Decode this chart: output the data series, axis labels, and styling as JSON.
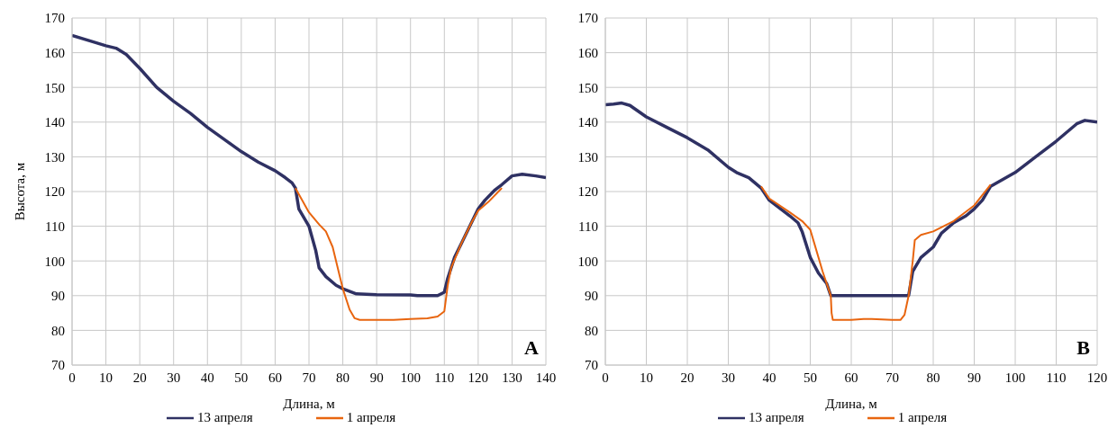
{
  "chart_data": [
    {
      "type": "line",
      "xlabel": "Длина, м",
      "ylabel": "Высота, м",
      "xlim": [
        0,
        140
      ],
      "xticks": [
        0,
        10,
        20,
        30,
        40,
        50,
        60,
        70,
        80,
        90,
        100,
        110,
        120,
        130,
        140
      ],
      "ylim": [
        70,
        170
      ],
      "yticks": [
        70,
        80,
        90,
        100,
        110,
        120,
        130,
        140,
        150,
        160,
        170
      ],
      "grid": true,
      "legend": "bottom",
      "annotations": [
        "A"
      ],
      "series": [
        {
          "name": "13 апреля",
          "color": "#2f3163",
          "x": [
            0,
            5,
            10,
            13,
            16,
            20,
            25,
            30,
            35,
            40,
            45,
            50,
            55,
            60,
            63,
            65,
            66,
            67,
            70,
            72,
            73,
            75,
            78,
            80,
            84,
            90,
            100,
            102,
            108,
            110,
            111,
            113,
            115,
            117,
            119,
            120,
            122,
            125,
            127,
            130,
            133,
            137,
            140
          ],
          "values": [
            165,
            163.5,
            162,
            161.3,
            159.5,
            155.5,
            150,
            146,
            142.5,
            138.5,
            135,
            131.5,
            128.5,
            126,
            124,
            122.5,
            121,
            115,
            110,
            103,
            98,
            95.5,
            93,
            92,
            90.5,
            90.3,
            90.2,
            90,
            90,
            91,
            95,
            101,
            105,
            109,
            113,
            115,
            117.5,
            120.5,
            122,
            124.5,
            125,
            124.5,
            124
          ]
        },
        {
          "name": "1 апреля",
          "color": "#e8650f",
          "x": [
            66,
            70,
            73,
            75,
            77,
            79,
            80,
            82,
            83.5,
            85,
            90,
            95,
            100,
            105,
            108,
            110,
            111,
            112,
            115,
            118,
            120,
            123,
            126,
            127
          ],
          "values": [
            121,
            114,
            110.5,
            108.5,
            104,
            96,
            92,
            86,
            83.5,
            83,
            83,
            83,
            83.3,
            83.5,
            84,
            85.5,
            93,
            98,
            105,
            111,
            114.5,
            117,
            120,
            121
          ]
        }
      ]
    },
    {
      "type": "line",
      "xlabel": "Длина, м",
      "xlim": [
        0,
        120
      ],
      "xticks": [
        0,
        10,
        20,
        30,
        40,
        50,
        60,
        70,
        80,
        90,
        100,
        110,
        120
      ],
      "ylim": [
        70,
        170
      ],
      "yticks": [
        70,
        80,
        90,
        100,
        110,
        120,
        130,
        140,
        150,
        160,
        170
      ],
      "grid": true,
      "legend": "bottom",
      "annotations": [
        "B"
      ],
      "series": [
        {
          "name": "13 апреля",
          "color": "#2f3163",
          "x": [
            0,
            2,
            4,
            6,
            10,
            15,
            20,
            25,
            30,
            32,
            35,
            38,
            40,
            45,
            47,
            48,
            50,
            52,
            54,
            55,
            60,
            70,
            74,
            75,
            77,
            80,
            82,
            85,
            88,
            90,
            92,
            94,
            100,
            105,
            110,
            115,
            117,
            120
          ],
          "values": [
            145,
            145.2,
            145.5,
            144.8,
            141.5,
            138.5,
            135.5,
            132,
            127,
            125.5,
            124,
            121,
            117.5,
            113,
            111,
            108.5,
            101,
            96.5,
            93.5,
            90,
            90,
            90,
            90,
            97,
            101,
            104,
            108,
            111,
            113,
            115,
            117.5,
            121.5,
            125.5,
            130,
            134.5,
            139.5,
            140.5,
            140
          ]
        },
        {
          "name": "1 апреля",
          "color": "#e8650f",
          "x": [
            38,
            40,
            45,
            48,
            50,
            51,
            53,
            55,
            55.2,
            55.5,
            60,
            63,
            65,
            70,
            72,
            73,
            74,
            75,
            75.5,
            77,
            80,
            85,
            90,
            94
          ],
          "values": [
            121.5,
            118,
            114,
            111.5,
            109,
            105,
            97,
            90,
            85,
            83,
            83,
            83.3,
            83.3,
            83,
            83,
            84.5,
            90,
            100,
            106,
            107.5,
            108.5,
            111.5,
            116,
            122
          ]
        }
      ]
    }
  ]
}
